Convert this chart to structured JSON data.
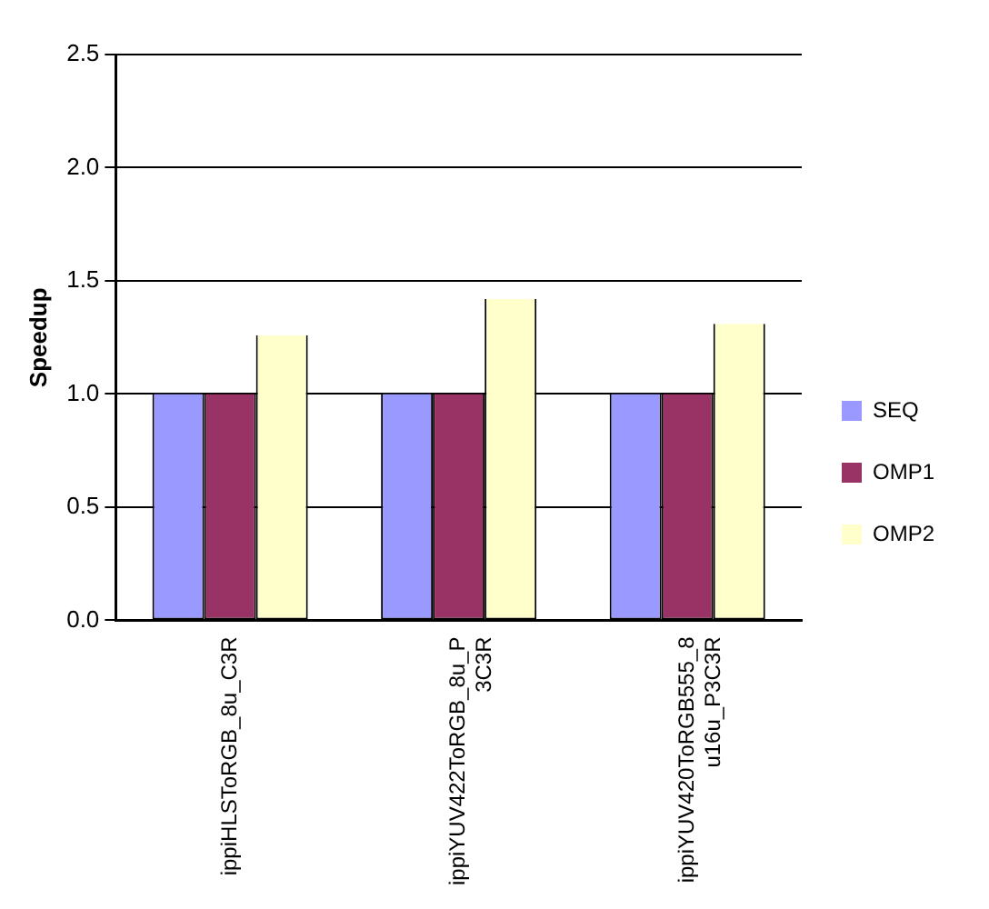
{
  "chart_data": {
    "type": "bar",
    "ylabel": "Speedup",
    "categories": [
      "ippiHLSToRGB_8u_C3R",
      "ippiYUV422ToRGB_8u_P3C3R",
      "ippiYUV420ToRGB555_8u16u_P3C3R"
    ],
    "series": [
      {
        "name": "SEQ",
        "color": "#9999ff",
        "values": [
          1.0,
          1.0,
          1.0
        ]
      },
      {
        "name": "OMP1",
        "color": "#993366",
        "values": [
          1.0,
          1.0,
          1.0
        ]
      },
      {
        "name": "OMP2",
        "color": "#ffffcc",
        "values": [
          1.26,
          1.42,
          1.31
        ]
      }
    ],
    "ylim": [
      0,
      2.5
    ],
    "yticks": [
      {
        "value": 0,
        "label": "0.0"
      },
      0.5,
      {
        "value": 1,
        "label": "1.0"
      },
      1.5,
      {
        "value": 2,
        "label": "2.0"
      },
      2.5
    ],
    "grid": "y",
    "legend": "right"
  }
}
